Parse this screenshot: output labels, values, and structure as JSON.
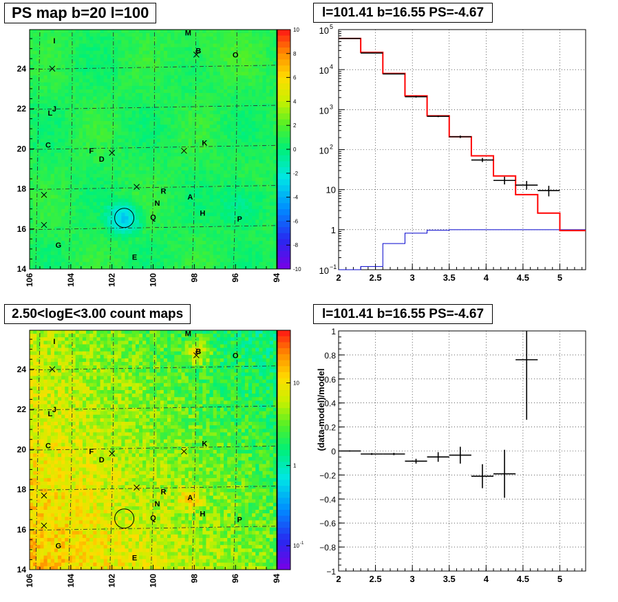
{
  "titles": {
    "map_top": "PS map b=20 l=100",
    "spec_top": "l=101.41 b=16.55 PS=-4.67",
    "map_bottom": "2.50<logE<3.00 count maps",
    "resid": "l=101.41 b=16.55 PS=-4.67"
  },
  "maps": {
    "x_ticks": [
      "106",
      "104",
      "102",
      "100",
      "98",
      "96",
      "94"
    ],
    "y_ticks": [
      "14",
      "16",
      "18",
      "20",
      "22",
      "24"
    ],
    "sources": [
      {
        "label": "M",
        "l": 98.3,
        "b": 25.8
      },
      {
        "label": "I",
        "l": 104.8,
        "b": 25.4
      },
      {
        "label": "B",
        "l": 97.8,
        "b": 24.9
      },
      {
        "label": "O",
        "l": 96.0,
        "b": 24.7
      },
      {
        "label": "J",
        "l": 104.8,
        "b": 22.0
      },
      {
        "label": "L",
        "l": 105.0,
        "b": 21.8
      },
      {
        "label": "C",
        "l": 105.1,
        "b": 20.2
      },
      {
        "label": "F",
        "l": 103.0,
        "b": 19.9
      },
      {
        "label": "D",
        "l": 102.5,
        "b": 19.5
      },
      {
        "label": "K",
        "l": 97.5,
        "b": 20.3
      },
      {
        "label": "R",
        "l": 99.5,
        "b": 17.9
      },
      {
        "label": "A",
        "l": 98.2,
        "b": 17.6
      },
      {
        "label": "N",
        "l": 99.8,
        "b": 17.3
      },
      {
        "label": "H",
        "l": 97.6,
        "b": 16.8
      },
      {
        "label": "Q",
        "l": 100.0,
        "b": 16.6
      },
      {
        "label": "P",
        "l": 95.8,
        "b": 16.5
      },
      {
        "label": "G",
        "l": 104.6,
        "b": 15.2
      },
      {
        "label": "E",
        "l": 100.9,
        "b": 14.6
      }
    ],
    "crosses": [
      {
        "l": 104.9,
        "b": 24.0
      },
      {
        "l": 97.9,
        "b": 24.7
      },
      {
        "l": 102.0,
        "b": 19.8
      },
      {
        "l": 98.5,
        "b": 19.9
      },
      {
        "l": 100.8,
        "b": 18.1
      },
      {
        "l": 105.3,
        "b": 17.7
      },
      {
        "l": 105.3,
        "b": 16.2
      }
    ],
    "circle": {
      "l": 101.4,
      "b": 16.55
    },
    "ps_colorbar_ticks": [
      "10",
      "8",
      "6",
      "4",
      "2",
      "0",
      "-2",
      "-4",
      "-6",
      "-8",
      "-10"
    ],
    "count_colorbar_ticks": [
      "10",
      "1",
      "10"
    ],
    "count_colorbar_minor": "-1"
  },
  "colors": {
    "model_line": "#ff0000",
    "bg_line": "#0000cc",
    "data": "#000000"
  },
  "chart_data": [
    {
      "type": "line",
      "title": "l=101.41 b=16.55 PS=-4.67",
      "xlabel": "",
      "ylabel": "",
      "y_scale": "log",
      "xlim": [
        2,
        5.35
      ],
      "ylim": [
        0.1,
        100000
      ],
      "x_ticks": [
        "2",
        "2.5",
        "3",
        "3.5",
        "4",
        "4.5",
        "5"
      ],
      "y_ticks": [
        {
          "base": "10",
          "exp": "5"
        },
        {
          "base": "10",
          "exp": "4"
        },
        {
          "base": "10",
          "exp": "3"
        },
        {
          "base": "10",
          "exp": "2"
        },
        {
          "text": "10"
        },
        {
          "text": "1"
        },
        {
          "base": "10",
          "exp": "−1"
        }
      ],
      "grid": true,
      "bin_edges": [
        2.0,
        2.3,
        2.6,
        2.9,
        3.2,
        3.5,
        3.8,
        4.1,
        4.4,
        4.7,
        5.0,
        5.35
      ],
      "model": [
        60000,
        27000,
        8000,
        2200,
        700,
        210,
        70,
        22,
        7.5,
        2.6,
        0.95
      ],
      "background": [
        0.1,
        0.12,
        0.45,
        0.82,
        0.97,
        1.0,
        1.0,
        1.0,
        1.0,
        1.0,
        1.0
      ],
      "data_points": [
        {
          "x": 2.15,
          "y": 60000,
          "xerr": 0.15,
          "ylo": 60000,
          "yhi": 60000
        },
        {
          "x": 2.45,
          "y": 26000,
          "xerr": 0.15,
          "ylo": 26000,
          "yhi": 26000
        },
        {
          "x": 2.75,
          "y": 7800,
          "xerr": 0.15,
          "ylo": 7800,
          "yhi": 7800
        },
        {
          "x": 3.05,
          "y": 2100,
          "xerr": 0.15,
          "ylo": 2000,
          "yhi": 2200
        },
        {
          "x": 3.35,
          "y": 680,
          "xerr": 0.15,
          "ylo": 650,
          "yhi": 710
        },
        {
          "x": 3.65,
          "y": 210,
          "xerr": 0.15,
          "ylo": 195,
          "yhi": 225
        },
        {
          "x": 3.95,
          "y": 55,
          "xerr": 0.15,
          "ylo": 49,
          "yhi": 62
        },
        {
          "x": 4.25,
          "y": 17,
          "xerr": 0.15,
          "ylo": 13.5,
          "yhi": 21
        },
        {
          "x": 4.55,
          "y": 13,
          "xerr": 0.15,
          "ylo": 10,
          "yhi": 16.5
        },
        {
          "x": 4.85,
          "y": 9.5,
          "xerr": 0.15,
          "ylo": 6.8,
          "yhi": 12.5
        }
      ]
    },
    {
      "type": "scatter",
      "title": "l=101.41 b=16.55 PS=-4.67",
      "xlabel": "",
      "ylabel": "(data-model)/model",
      "xlim": [
        2,
        5.35
      ],
      "ylim": [
        -1,
        1
      ],
      "x_ticks": [
        "2",
        "2.5",
        "3",
        "3.5",
        "4",
        "4.5",
        "5"
      ],
      "y_ticks": [
        "1",
        "0.8",
        "0.6",
        "0.4",
        "0.2",
        "0",
        "−0.2",
        "−0.4",
        "−0.6",
        "−0.8",
        "−1"
      ],
      "grid": true,
      "points": [
        {
          "x": 2.15,
          "y": 0.0,
          "xerr": 0.15,
          "yerr": 0.005
        },
        {
          "x": 2.45,
          "y": -0.025,
          "xerr": 0.15,
          "yerr": 0.008
        },
        {
          "x": 2.75,
          "y": -0.025,
          "xerr": 0.15,
          "yerr": 0.01
        },
        {
          "x": 3.05,
          "y": -0.085,
          "xerr": 0.15,
          "yerr": 0.02
        },
        {
          "x": 3.35,
          "y": -0.05,
          "xerr": 0.15,
          "yerr": 0.04
        },
        {
          "x": 3.65,
          "y": -0.035,
          "xerr": 0.15,
          "yerr": 0.07
        },
        {
          "x": 3.95,
          "y": -0.21,
          "xerr": 0.15,
          "yerr": 0.1
        },
        {
          "x": 4.25,
          "y": -0.19,
          "xerr": 0.15,
          "yerr": 0.2
        },
        {
          "x": 4.55,
          "y": 0.76,
          "xerr": 0.15,
          "yerr": 0.5
        }
      ]
    }
  ]
}
